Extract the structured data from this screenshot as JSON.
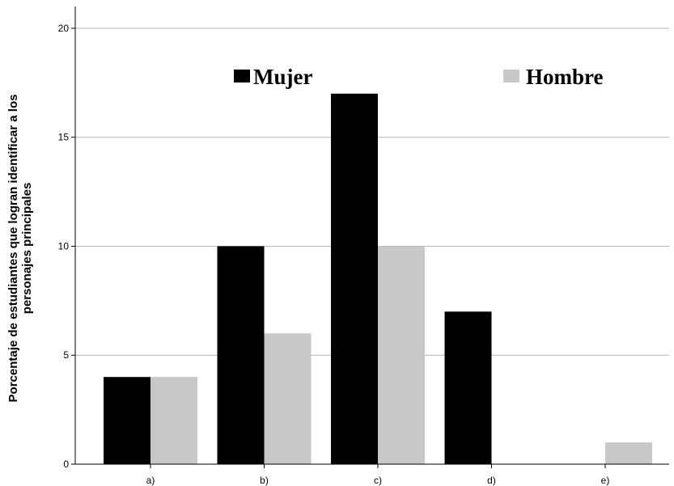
{
  "chart_data": {
    "type": "bar",
    "categories": [
      "a)",
      "b)",
      "c)",
      "d)",
      "e)"
    ],
    "series": [
      {
        "name": "Mujer",
        "values": [
          4,
          10,
          17,
          7,
          0
        ],
        "color": "#000000"
      },
      {
        "name": "Hombre",
        "values": [
          4,
          6,
          10,
          0,
          1
        ],
        "color": "#c8c8c8"
      }
    ],
    "title": "",
    "xlabel": "",
    "ylabel_lines": [
      "Porcentaje de estudiantes que logran identificar a los",
      "personajes principales"
    ],
    "ylim": [
      0,
      21
    ],
    "yticks": [
      0,
      5,
      10,
      15,
      20
    ],
    "grid": true,
    "legend_position": "top"
  }
}
